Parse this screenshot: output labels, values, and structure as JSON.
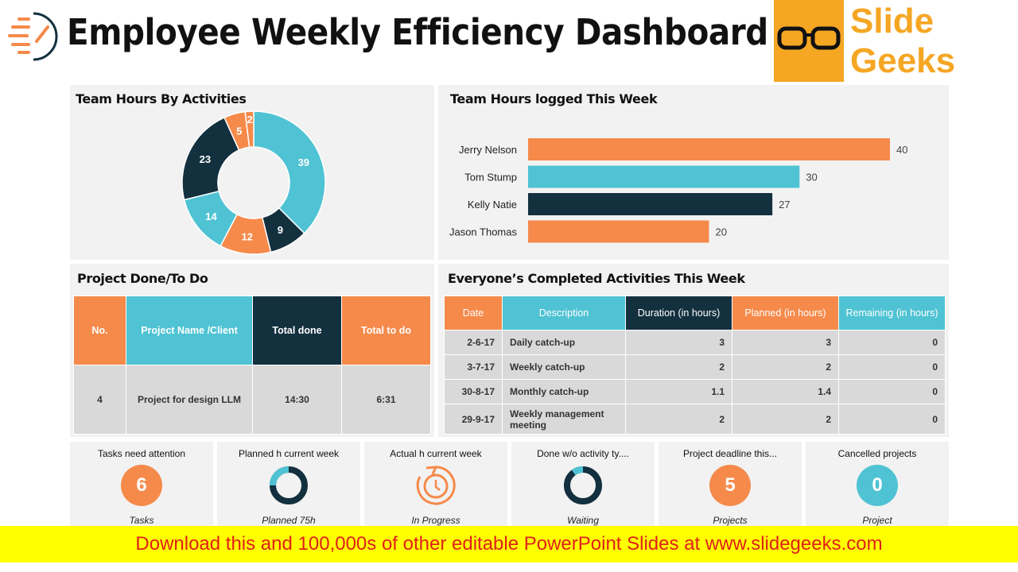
{
  "header": {
    "title": "Employee Weekly Efficiency Dashboard",
    "logo_text": [
      "Slide",
      "Geeks"
    ]
  },
  "colors": {
    "orange": "#F58A4B",
    "teal": "#4FC3D3",
    "navy": "#13303F"
  },
  "donut": {
    "title": "Team Hours By Activities",
    "chart_data": {
      "type": "pie",
      "values": [
        39,
        9,
        12,
        14,
        23,
        5,
        2
      ],
      "colors": [
        "teal",
        "navy",
        "orange",
        "teal",
        "navy",
        "orange",
        "orange"
      ]
    }
  },
  "bars": {
    "title": "Team Hours logged This Week",
    "chart_data": {
      "type": "bar",
      "categories": [
        "Jerry Nelson",
        "Tom Stump",
        "Kelly Natie",
        "Jason Thomas"
      ],
      "values": [
        40,
        30,
        27,
        20
      ],
      "colors": [
        "orange",
        "teal",
        "navy",
        "orange"
      ]
    }
  },
  "projects": {
    "title": "Project Done/To Do",
    "headers": [
      "No.",
      "Project Name /Client",
      "Total done",
      "Total to do"
    ],
    "rows": [
      [
        "4",
        "Project for design LLM",
        "14:30",
        "6:31"
      ]
    ]
  },
  "activities": {
    "title": "Everyone’s Completed Activities This Week",
    "headers": [
      "Date",
      "Description",
      "Duration (in hours)",
      "Planned (in hours)",
      "Remaining (in hours)"
    ],
    "rows": [
      [
        "2-6-17",
        "Daily catch-up",
        "3",
        "3",
        "0"
      ],
      [
        "3-7-17",
        "Weekly catch-up",
        "2",
        "2",
        "0"
      ],
      [
        "30-8-17",
        "Monthly catch-up",
        "1.1",
        "1.4",
        "0"
      ],
      [
        "29-9-17",
        "Weekly management meeting",
        "2",
        "2",
        "0"
      ]
    ]
  },
  "kpis": [
    {
      "title": "Tasks need attention",
      "value": "6",
      "sub": "Tasks",
      "kind": "circle",
      "color": "orange"
    },
    {
      "title": "Planned h current week",
      "sub": "Planned 75h",
      "kind": "ring",
      "fraction": 0.25
    },
    {
      "title": "Actual h current week",
      "sub": "In Progress",
      "kind": "clock-refresh-icon"
    },
    {
      "title": "Done w/o activity ty....",
      "sub": "Waiting",
      "kind": "ring",
      "fraction": 0.1
    },
    {
      "title": "Project deadline this...",
      "value": "5",
      "sub": "Projects",
      "kind": "circle",
      "color": "orange"
    },
    {
      "title": "Cancelled projects",
      "value": "0",
      "sub": "Project",
      "kind": "circle",
      "color": "teal"
    }
  ],
  "banner": "Download this and 100,000s of other editable PowerPoint Slides at www.slidegeeks.com"
}
